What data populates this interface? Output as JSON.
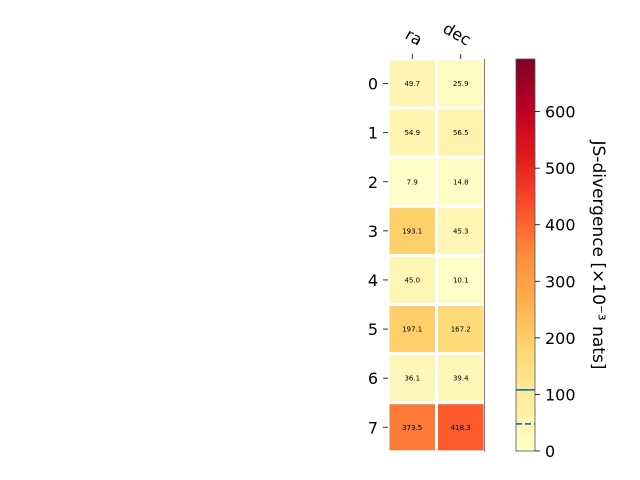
{
  "chart_data": {
    "type": "heatmap",
    "columns": [
      "ra",
      "dec"
    ],
    "rows": [
      "0",
      "1",
      "2",
      "3",
      "4",
      "5",
      "6",
      "7"
    ],
    "values": [
      [
        49.7,
        25.9
      ],
      [
        54.9,
        56.5
      ],
      [
        7.9,
        14.8
      ],
      [
        193.1,
        45.3
      ],
      [
        45.0,
        10.1
      ],
      [
        197.1,
        167.2
      ],
      [
        36.1,
        39.4
      ],
      [
        373.5,
        418.3
      ]
    ],
    "cell_labels": [
      [
        "49.7",
        "25.9"
      ],
      [
        "54.9",
        "56.5"
      ],
      [
        "7.9",
        "14.8"
      ],
      [
        "193.1",
        "45.3"
      ],
      [
        "45.0",
        "10.1"
      ],
      [
        "197.1",
        "167.2"
      ],
      [
        "36.1",
        "39.4"
      ],
      [
        "373.5",
        "418.3"
      ]
    ],
    "colorbar": {
      "label": "JS-divergence [×10⁻³ nats]",
      "range": [
        0,
        693
      ],
      "ticks": [
        0,
        100,
        200,
        300,
        400,
        500,
        600
      ],
      "tick_labels": [
        "0",
        "100",
        "200",
        "300",
        "400",
        "500",
        "600"
      ],
      "colormap": "YlOrRd",
      "reference_lines": [
        {
          "value": 108,
          "style": "solid",
          "color": "#1f77b4"
        },
        {
          "value": 48,
          "style": "dashed",
          "color": "#1f77b4"
        }
      ]
    },
    "grid": false
  }
}
